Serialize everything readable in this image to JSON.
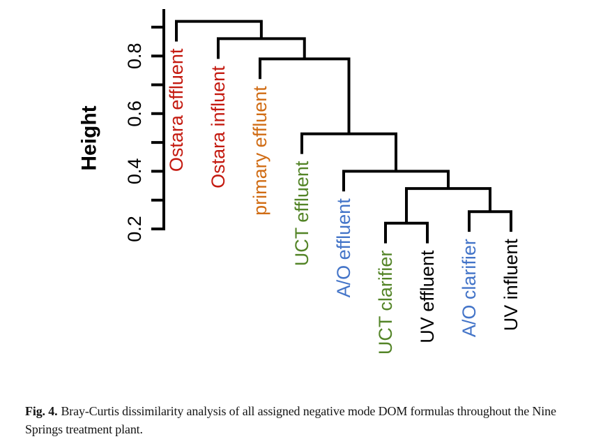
{
  "figure": {
    "caption_label": "Fig. 4.",
    "caption_text": "Bray-Curtis dissimilarity analysis of all assigned negative mode DOM formulas throughout the Nine Springs treatment plant."
  },
  "chart_data": {
    "type": "dendrogram",
    "title": "",
    "xlabel": "",
    "ylabel": "Height",
    "ylim": [
      0.2,
      0.96
    ],
    "grid": false,
    "legend": "none",
    "minor_tick_values": [
      0.2,
      0.3,
      0.4,
      0.5,
      0.6,
      0.7,
      0.8,
      0.9
    ],
    "labeled_ticks": [
      {
        "value": 0.2,
        "label": "0.2"
      },
      {
        "value": 0.4,
        "label": "0.4"
      },
      {
        "value": 0.6,
        "label": "0.6"
      },
      {
        "value": 0.8,
        "label": "0.8"
      }
    ],
    "hang": 0.07,
    "line_color": "#000000",
    "leaves": [
      {
        "label": "Ostara effluent",
        "color": "#c41a10"
      },
      {
        "label": "Ostara influent",
        "color": "#c41a10"
      },
      {
        "label": "primary effluent",
        "color": "#d06c14"
      },
      {
        "label": "UCT effluent",
        "color": "#538427"
      },
      {
        "label": "A/O effluent",
        "color": "#4374c8"
      },
      {
        "label": "UCT clarifier",
        "color": "#538427"
      },
      {
        "label": "UV effluent",
        "color": "#000000"
      },
      {
        "label": "A/O clarifier",
        "color": "#4374c8"
      },
      {
        "label": "UV influent",
        "color": "#000000"
      }
    ],
    "merges": [
      {
        "id": "m1",
        "a": "leaf:5",
        "b": "leaf:6",
        "height": 0.22
      },
      {
        "id": "m2",
        "a": "leaf:7",
        "b": "leaf:8",
        "height": 0.26
      },
      {
        "id": "m3",
        "a": "m1",
        "b": "m2",
        "height": 0.34
      },
      {
        "id": "m4",
        "a": "leaf:4",
        "b": "m3",
        "height": 0.4
      },
      {
        "id": "m5",
        "a": "leaf:3",
        "b": "m4",
        "height": 0.53
      },
      {
        "id": "m6",
        "a": "leaf:2",
        "b": "m5",
        "height": 0.79
      },
      {
        "id": "m7",
        "a": "leaf:1",
        "b": "m6",
        "height": 0.86
      },
      {
        "id": "m8",
        "a": "leaf:0",
        "b": "m7",
        "height": 0.92
      }
    ]
  }
}
